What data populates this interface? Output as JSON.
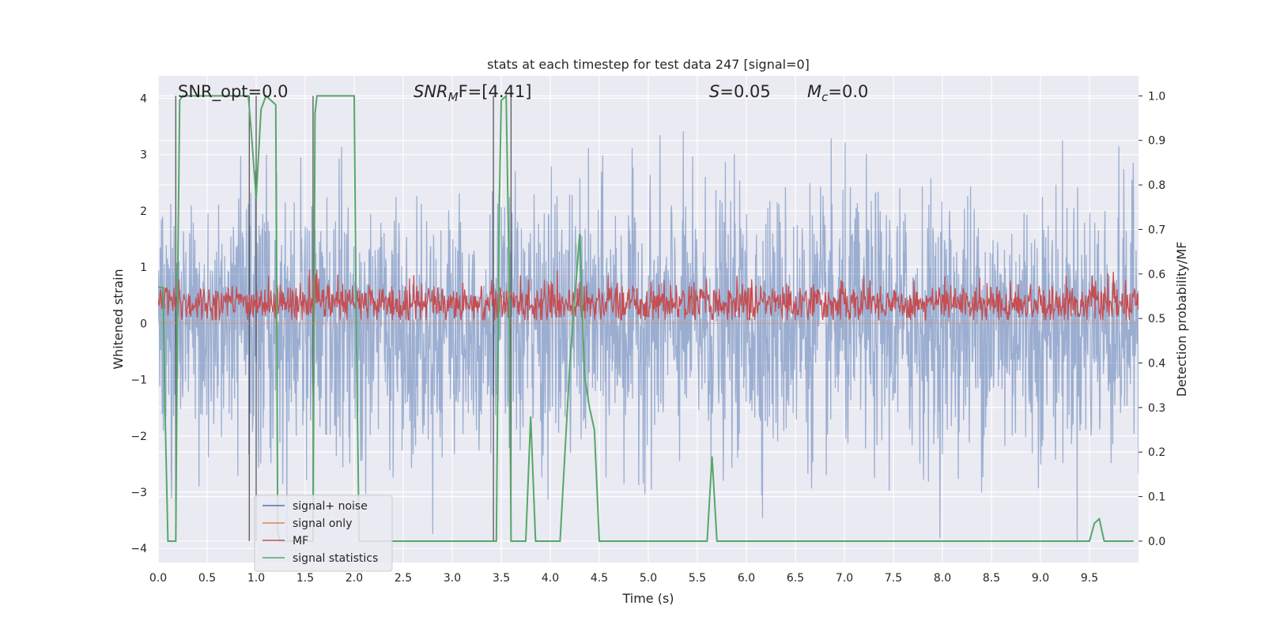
{
  "chart_data": {
    "type": "line",
    "title": "stats at each timestep for test data 247 [signal=0]",
    "xlabel": "Time (s)",
    "ylabel_left": "Whitened strain",
    "ylabel_right": "Detection probability/MF",
    "xlim": [
      0.0,
      10.0
    ],
    "ylim_left": [
      -4.25,
      4.4
    ],
    "ylim_right": [
      -0.048,
      1.045
    ],
    "x_ticks": [
      0.0,
      0.5,
      1.0,
      1.5,
      2.0,
      2.5,
      3.0,
      3.5,
      4.0,
      4.5,
      5.0,
      5.5,
      6.0,
      6.5,
      7.0,
      7.5,
      8.0,
      8.5,
      9.0,
      9.5
    ],
    "x_tick_labels": [
      "0.0",
      "0.5",
      "1.0",
      "1.5",
      "2.0",
      "2.5",
      "3.0",
      "3.5",
      "4.0",
      "4.5",
      "5.0",
      "5.5",
      "6.0",
      "6.5",
      "7.0",
      "7.5",
      "8.0",
      "8.5",
      "9.0",
      "9.5"
    ],
    "y_left_ticks": [
      -4,
      -3,
      -2,
      -1,
      0,
      1,
      2,
      3,
      4
    ],
    "y_left_tick_labels": [
      "−4",
      "−3",
      "−2",
      "−1",
      "0",
      "1",
      "2",
      "3",
      "4"
    ],
    "y_right_ticks": [
      0.0,
      0.1,
      0.2,
      0.3,
      0.4,
      0.5,
      0.6,
      0.7,
      0.8,
      0.9,
      1.0
    ],
    "y_right_tick_labels": [
      "0.0",
      "0.1",
      "0.2",
      "0.3",
      "0.4",
      "0.5",
      "0.6",
      "0.7",
      "0.8",
      "0.9",
      "1.0"
    ],
    "annotations": {
      "snr_opt": "SNR_opt=0.0",
      "snr_mf_base": "SNR",
      "snr_mf_sub": "M",
      "snr_mf_rest": "F=[4.41]",
      "s_var": "S",
      "s_rest": "=0.05",
      "mc_var": "M",
      "mc_sub": "c",
      "mc_rest": "=0.0"
    },
    "grid": true,
    "legend_position": "lower-left",
    "series": [
      {
        "name": "signal+ noise",
        "color": "#4c72b0",
        "axis": "left",
        "style": "noise band, amplitude roughly within -3.5..4",
        "envelope_typical": [
          -2.3,
          2.3
        ],
        "envelope_peak": [
          -3.9,
          4.0
        ]
      },
      {
        "name": "signal only",
        "color": "#dd8452",
        "axis": "left",
        "values": "flat at 0"
      },
      {
        "name": "MF",
        "color": "#c44e52",
        "axis": "right",
        "style": "noisy band",
        "band": [
          0.495,
          0.58
        ],
        "peak": 0.61
      },
      {
        "name": "signal statistics",
        "color": "#55a868",
        "axis": "right",
        "x": [
          0.0,
          0.05,
          0.07,
          0.1,
          0.12,
          0.17,
          0.18,
          0.2,
          0.22,
          0.25,
          0.3,
          0.5,
          0.7,
          0.92,
          0.95,
          1.0,
          1.05,
          1.1,
          1.15,
          1.2,
          1.22,
          1.24,
          1.5,
          1.55,
          1.58,
          1.6,
          1.62,
          1.65,
          1.8,
          1.95,
          2.0,
          2.02,
          2.05,
          2.1,
          2.5,
          3.0,
          3.2,
          3.4,
          3.42,
          3.45,
          3.48,
          3.5,
          3.55,
          3.58,
          3.6,
          3.63,
          3.65,
          3.75,
          3.8,
          3.85,
          3.9,
          4.0,
          4.1,
          4.2,
          4.3,
          4.35,
          4.4,
          4.45,
          4.5,
          4.55,
          5.0,
          5.5,
          5.6,
          5.65,
          5.7,
          5.75,
          5.8,
          6.0,
          7.0,
          8.0,
          9.0,
          9.5,
          9.55,
          9.6,
          9.65,
          9.7,
          9.8,
          9.95
        ],
        "values": [
          0.57,
          0.57,
          0.3,
          0.0,
          0.0,
          0.0,
          0.0,
          0.6,
          0.99,
          1.0,
          1.0,
          1.0,
          1.0,
          1.0,
          0.92,
          0.77,
          0.97,
          1.0,
          0.99,
          0.98,
          0.02,
          0.0,
          0.0,
          0.0,
          0.0,
          0.96,
          1.0,
          1.0,
          1.0,
          1.0,
          1.0,
          0.5,
          0.0,
          0.0,
          0.0,
          0.0,
          0.0,
          0.0,
          0.0,
          0.0,
          0.75,
          0.99,
          1.0,
          0.6,
          0.0,
          0.0,
          0.0,
          0.0,
          0.28,
          0.0,
          0.0,
          0.0,
          0.0,
          0.4,
          0.69,
          0.37,
          0.3,
          0.25,
          0.0,
          0.0,
          0.0,
          0.0,
          0.0,
          0.19,
          0.0,
          0.0,
          0.0,
          0.0,
          0.0,
          0.0,
          0.0,
          0.0,
          0.04,
          0.05,
          0.0,
          0.0,
          0.0,
          0.0
        ]
      }
    ]
  }
}
